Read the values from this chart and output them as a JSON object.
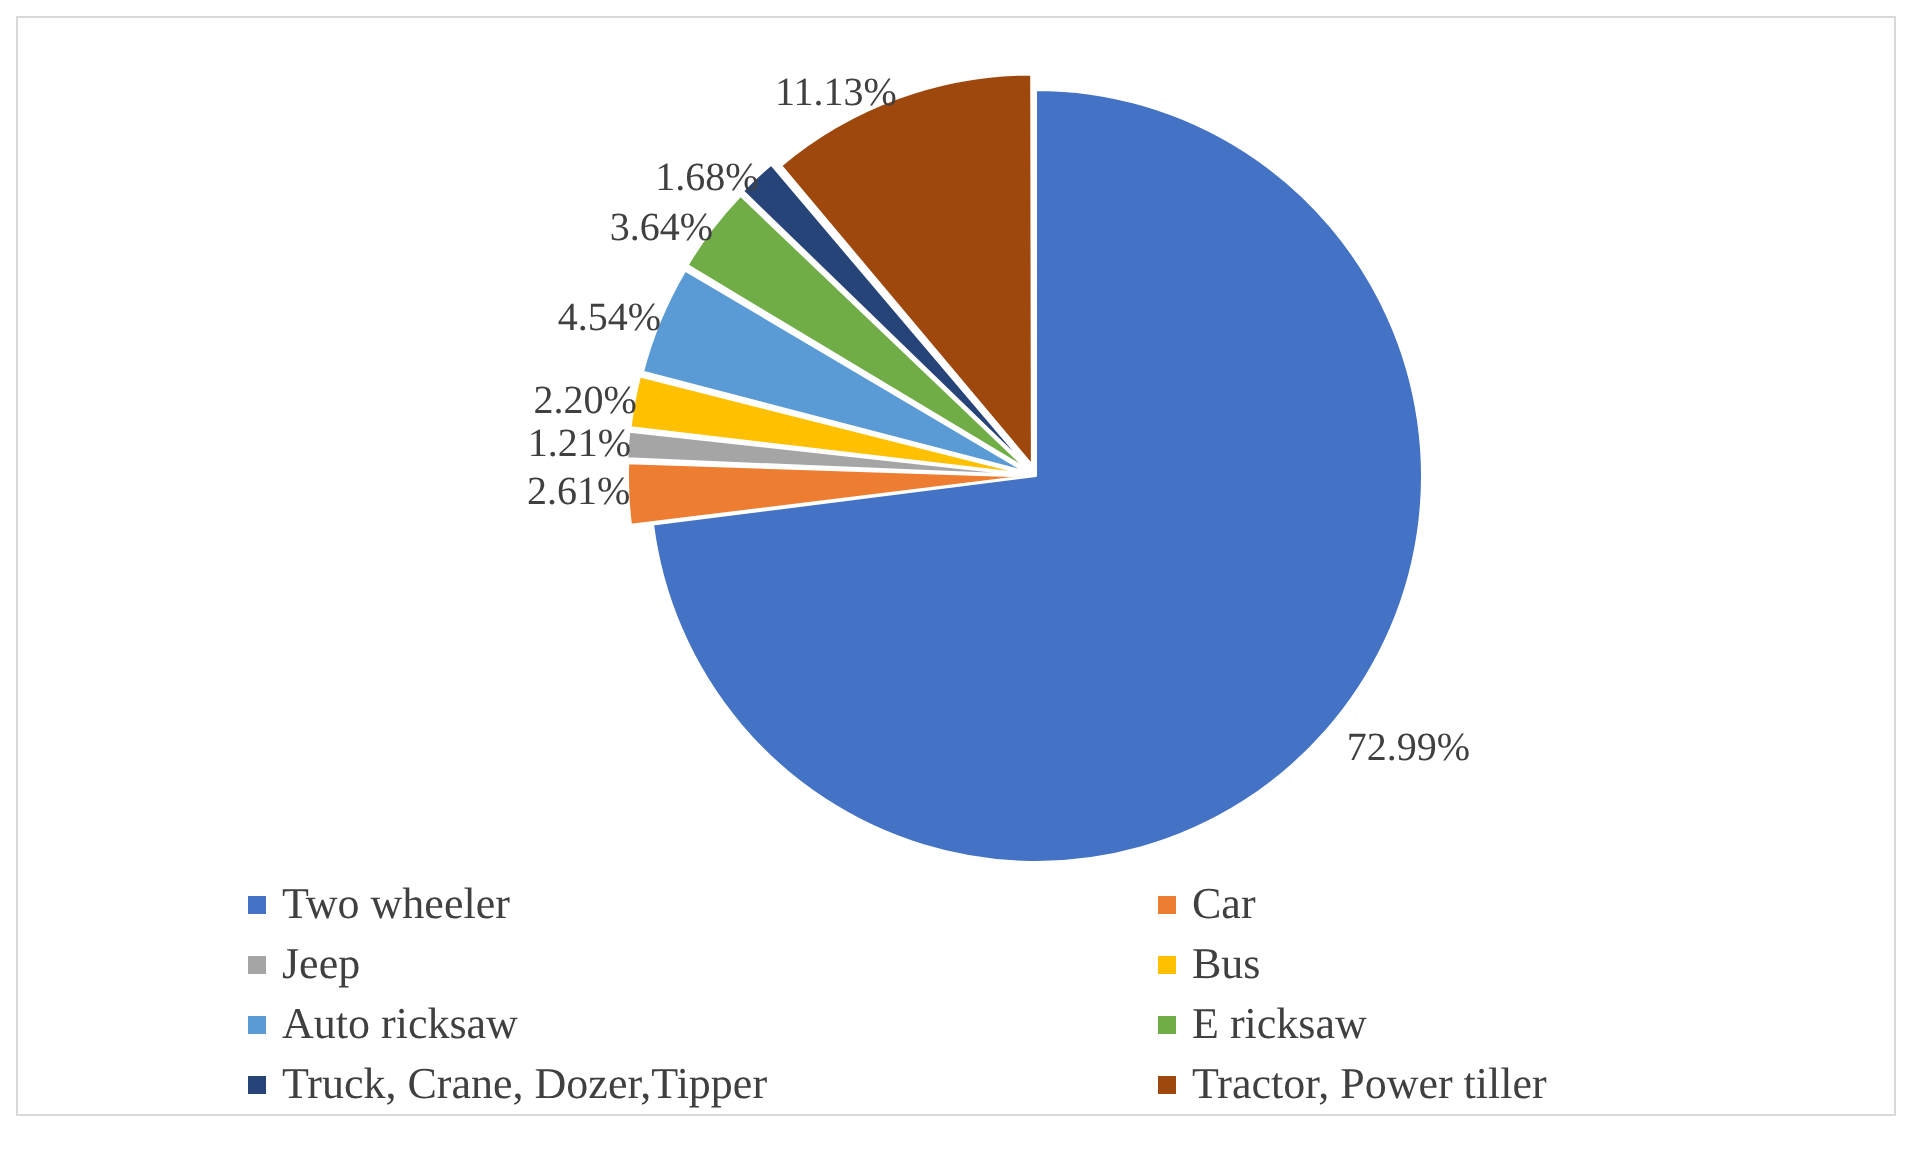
{
  "chart_data": {
    "type": "pie",
    "categories": [
      "Two wheeler",
      "Car",
      "Jeep",
      "Bus",
      "Auto ricksaw",
      "E ricksaw",
      "Truck, Crane, Dozer,Tipper",
      "Tractor, Power tiller"
    ],
    "values": [
      72.99,
      2.61,
      1.21,
      2.2,
      4.54,
      3.64,
      1.68,
      11.13
    ],
    "colors": [
      "#4472c4",
      "#ed7d31",
      "#a5a5a5",
      "#ffc000",
      "#5b9bd5",
      "#70ad47",
      "#264478",
      "#9e480e"
    ],
    "value_labels": [
      "72.99%",
      "2.61%",
      "1.21%",
      "2.20%",
      "4.54%",
      "3.64%",
      "1.68%",
      "11.13%"
    ],
    "legend": "bottom"
  }
}
